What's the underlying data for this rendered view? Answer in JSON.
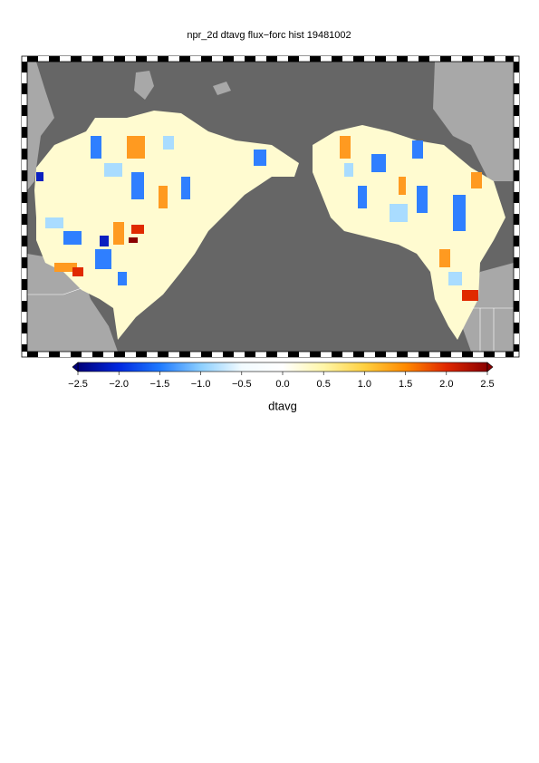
{
  "title": "npr_2d dtavg flux−forc hist 19481002",
  "colorbar": {
    "label": "dtavg",
    "lim": [
      -2.5,
      2.5
    ],
    "ticks": [
      {
        "value": -2.5,
        "label": "−2.5"
      },
      {
        "value": -2,
        "label": "−2.0"
      },
      {
        "value": -1.5,
        "label": "−1.5"
      },
      {
        "value": -1,
        "label": "−1.0"
      },
      {
        "value": -0.5,
        "label": "−0.5"
      },
      {
        "value": 0,
        "label": "0.0"
      },
      0.5,
      {
        "value": 1,
        "label": "1.0"
      },
      1.5,
      {
        "value": 2,
        "label": "2.0"
      },
      2.5
    ]
  }
}
